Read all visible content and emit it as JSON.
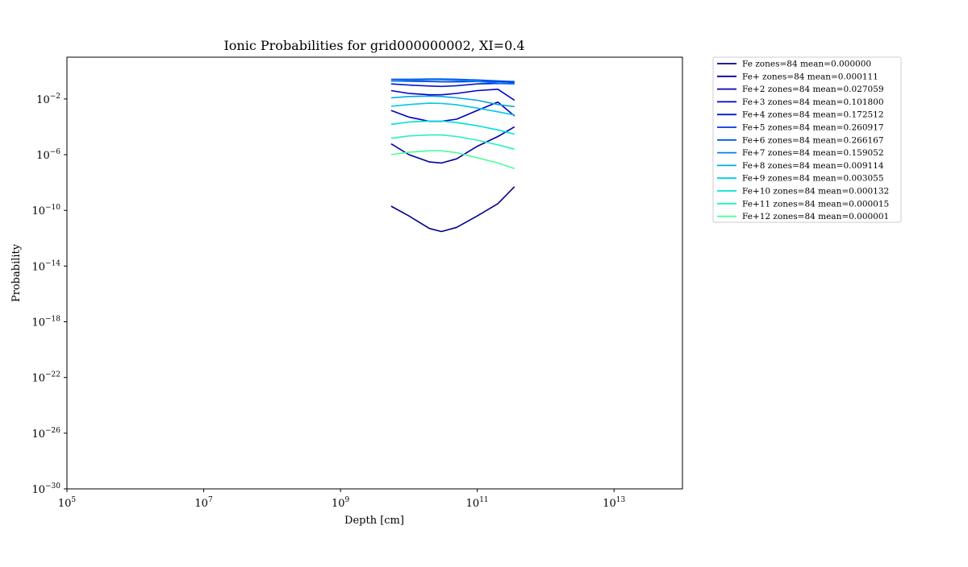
{
  "chart_data": {
    "type": "line",
    "title": "Ionic Probabilities for grid000000002, XI=0.4",
    "xlabel": "Depth [cm]",
    "ylabel": "Probability",
    "xscale": "log",
    "yscale": "log",
    "xlim": [
      100000,
      100000000000000
    ],
    "ylim": [
      1e-30,
      10
    ],
    "xticks": [
      {
        "value": 100000,
        "base": "10",
        "exp": "5"
      },
      {
        "value": 10000000,
        "base": "10",
        "exp": "7"
      },
      {
        "value": 1000000000,
        "base": "10",
        "exp": "9"
      },
      {
        "value": 100000000000,
        "base": "10",
        "exp": "11"
      },
      {
        "value": 10000000000000,
        "base": "10",
        "exp": "13"
      }
    ],
    "yticks": [
      {
        "value": 1e-30,
        "base": "10",
        "exp": "−30"
      },
      {
        "value": 1e-26,
        "base": "10",
        "exp": "−26"
      },
      {
        "value": 1e-22,
        "base": "10",
        "exp": "−22"
      },
      {
        "value": 1e-18,
        "base": "10",
        "exp": "−18"
      },
      {
        "value": 1e-14,
        "base": "10",
        "exp": "−14"
      },
      {
        "value": 1e-10,
        "base": "10",
        "exp": "−10"
      },
      {
        "value": 1e-06,
        "base": "10",
        "exp": "−6"
      },
      {
        "value": 0.01,
        "base": "10",
        "exp": "−2"
      }
    ],
    "grid": false,
    "legend_position": "outside-top-right",
    "x": [
      5500000000.0,
      10000000000.0,
      20000000000.0,
      30000000000.0,
      50000000000.0,
      100000000000.0,
      200000000000.0,
      350000000000.0
    ],
    "series": [
      {
        "name": "Fe zones=84 mean=0.000000",
        "color": "#00008b",
        "values": [
          2e-10,
          4e-11,
          5e-12,
          3e-12,
          6e-12,
          4e-11,
          3e-10,
          5e-09
        ]
      },
      {
        "name": "Fe+ zones=84 mean=0.000111",
        "color": "#0000a0",
        "values": [
          6e-06,
          1e-06,
          3e-07,
          2.5e-07,
          5e-07,
          4e-06,
          2e-05,
          0.0001
        ]
      },
      {
        "name": "Fe+2 zones=84 mean=0.027059",
        "color": "#0000b8",
        "values": [
          0.0015,
          0.0005,
          0.00025,
          0.00025,
          0.00035,
          0.0015,
          0.006,
          0.0006
        ]
      },
      {
        "name": "Fe+3 zones=84 mean=0.101800",
        "color": "#0000cc",
        "values": [
          0.04,
          0.025,
          0.02,
          0.02,
          0.025,
          0.04,
          0.05,
          0.008
        ]
      },
      {
        "name": "Fe+4 zones=84 mean=0.172512",
        "color": "#0018d0",
        "values": [
          0.12,
          0.1,
          0.085,
          0.08,
          0.09,
          0.12,
          0.13,
          0.12
        ]
      },
      {
        "name": "Fe+5 zones=84 mean=0.260917",
        "color": "#0034e0",
        "values": [
          0.2,
          0.19,
          0.18,
          0.17,
          0.17,
          0.18,
          0.18,
          0.15
        ]
      },
      {
        "name": "Fe+6 zones=84 mean=0.266167",
        "color": "#0055f0",
        "values": [
          0.26,
          0.26,
          0.27,
          0.27,
          0.26,
          0.23,
          0.2,
          0.18
        ]
      },
      {
        "name": "Fe+7 zones=84 mean=0.159052",
        "color": "#0080ee",
        "values": [
          0.2,
          0.22,
          0.24,
          0.24,
          0.22,
          0.18,
          0.14,
          0.12
        ]
      },
      {
        "name": "Fe+8 zones=84 mean=0.009114",
        "color": "#00a8ea",
        "values": [
          0.012,
          0.015,
          0.016,
          0.015,
          0.012,
          0.008,
          0.004,
          0.0028
        ]
      },
      {
        "name": "Fe+9 zones=84 mean=0.003055",
        "color": "#00c8e8",
        "values": [
          0.003,
          0.004,
          0.005,
          0.0048,
          0.0038,
          0.0022,
          0.0012,
          0.0007
        ]
      },
      {
        "name": "Fe+10 zones=84 mean=0.000132",
        "color": "#00e0d8",
        "values": [
          0.00015,
          0.00022,
          0.00026,
          0.00026,
          0.0002,
          0.00012,
          6e-05,
          3e-05
        ]
      },
      {
        "name": "Fe+11 zones=84 mean=0.000015",
        "color": "#22f0c0",
        "values": [
          1.5e-05,
          2.2e-05,
          2.6e-05,
          2.6e-05,
          2e-05,
          1.1e-05,
          5e-06,
          2.5e-06
        ]
      },
      {
        "name": "Fe+12 zones=84 mean=0.000001",
        "color": "#44ff9a",
        "values": [
          1e-06,
          1.5e-06,
          1.9e-06,
          1.9e-06,
          1.4e-06,
          6e-07,
          2.5e-07,
          1e-07
        ]
      }
    ]
  }
}
